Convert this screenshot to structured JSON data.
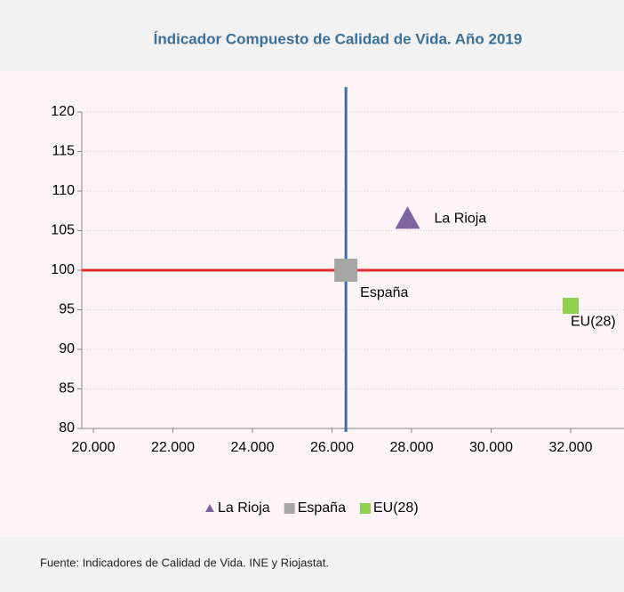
{
  "chart_data": {
    "type": "scatter",
    "title": "Índicador Compuesto de Calidad de Vida. Año 2019",
    "series": [
      {
        "name": "La Rioja",
        "color": "#8064a2",
        "marker": "triangle",
        "x": [
          27900
        ],
        "values": [
          106.5
        ]
      },
      {
        "name": "España",
        "color": "#a6a6a6",
        "marker": "square",
        "x": [
          26350
        ],
        "values": [
          100
        ]
      },
      {
        "name": "EU(28)",
        "color": "#92d050",
        "marker": "square",
        "x": [
          32000
        ],
        "values": [
          95.5
        ]
      }
    ],
    "reference_lines": {
      "x": 26350,
      "x_color": "#3d6fb0",
      "y": 100,
      "y_color": "#e03030"
    },
    "xlim": [
      20000,
      34000
    ],
    "xticks": [
      {
        "value": 20000,
        "label": "20.000"
      },
      {
        "value": 22000,
        "label": "22.000"
      },
      {
        "value": 24000,
        "label": "24.000"
      },
      {
        "value": 26000,
        "label": "26.000"
      },
      {
        "value": 28000,
        "label": "28.000"
      },
      {
        "value": 30000,
        "label": "30.000"
      },
      {
        "value": 32000,
        "label": "32.000"
      }
    ],
    "ylim": [
      80,
      120
    ],
    "yticks": [
      80,
      85,
      90,
      95,
      100,
      105,
      110,
      115,
      120
    ],
    "grid": true,
    "legend": "bottom",
    "source": "Fuente: Indicadores de Calidad de Vida. INE y Riojastat."
  }
}
